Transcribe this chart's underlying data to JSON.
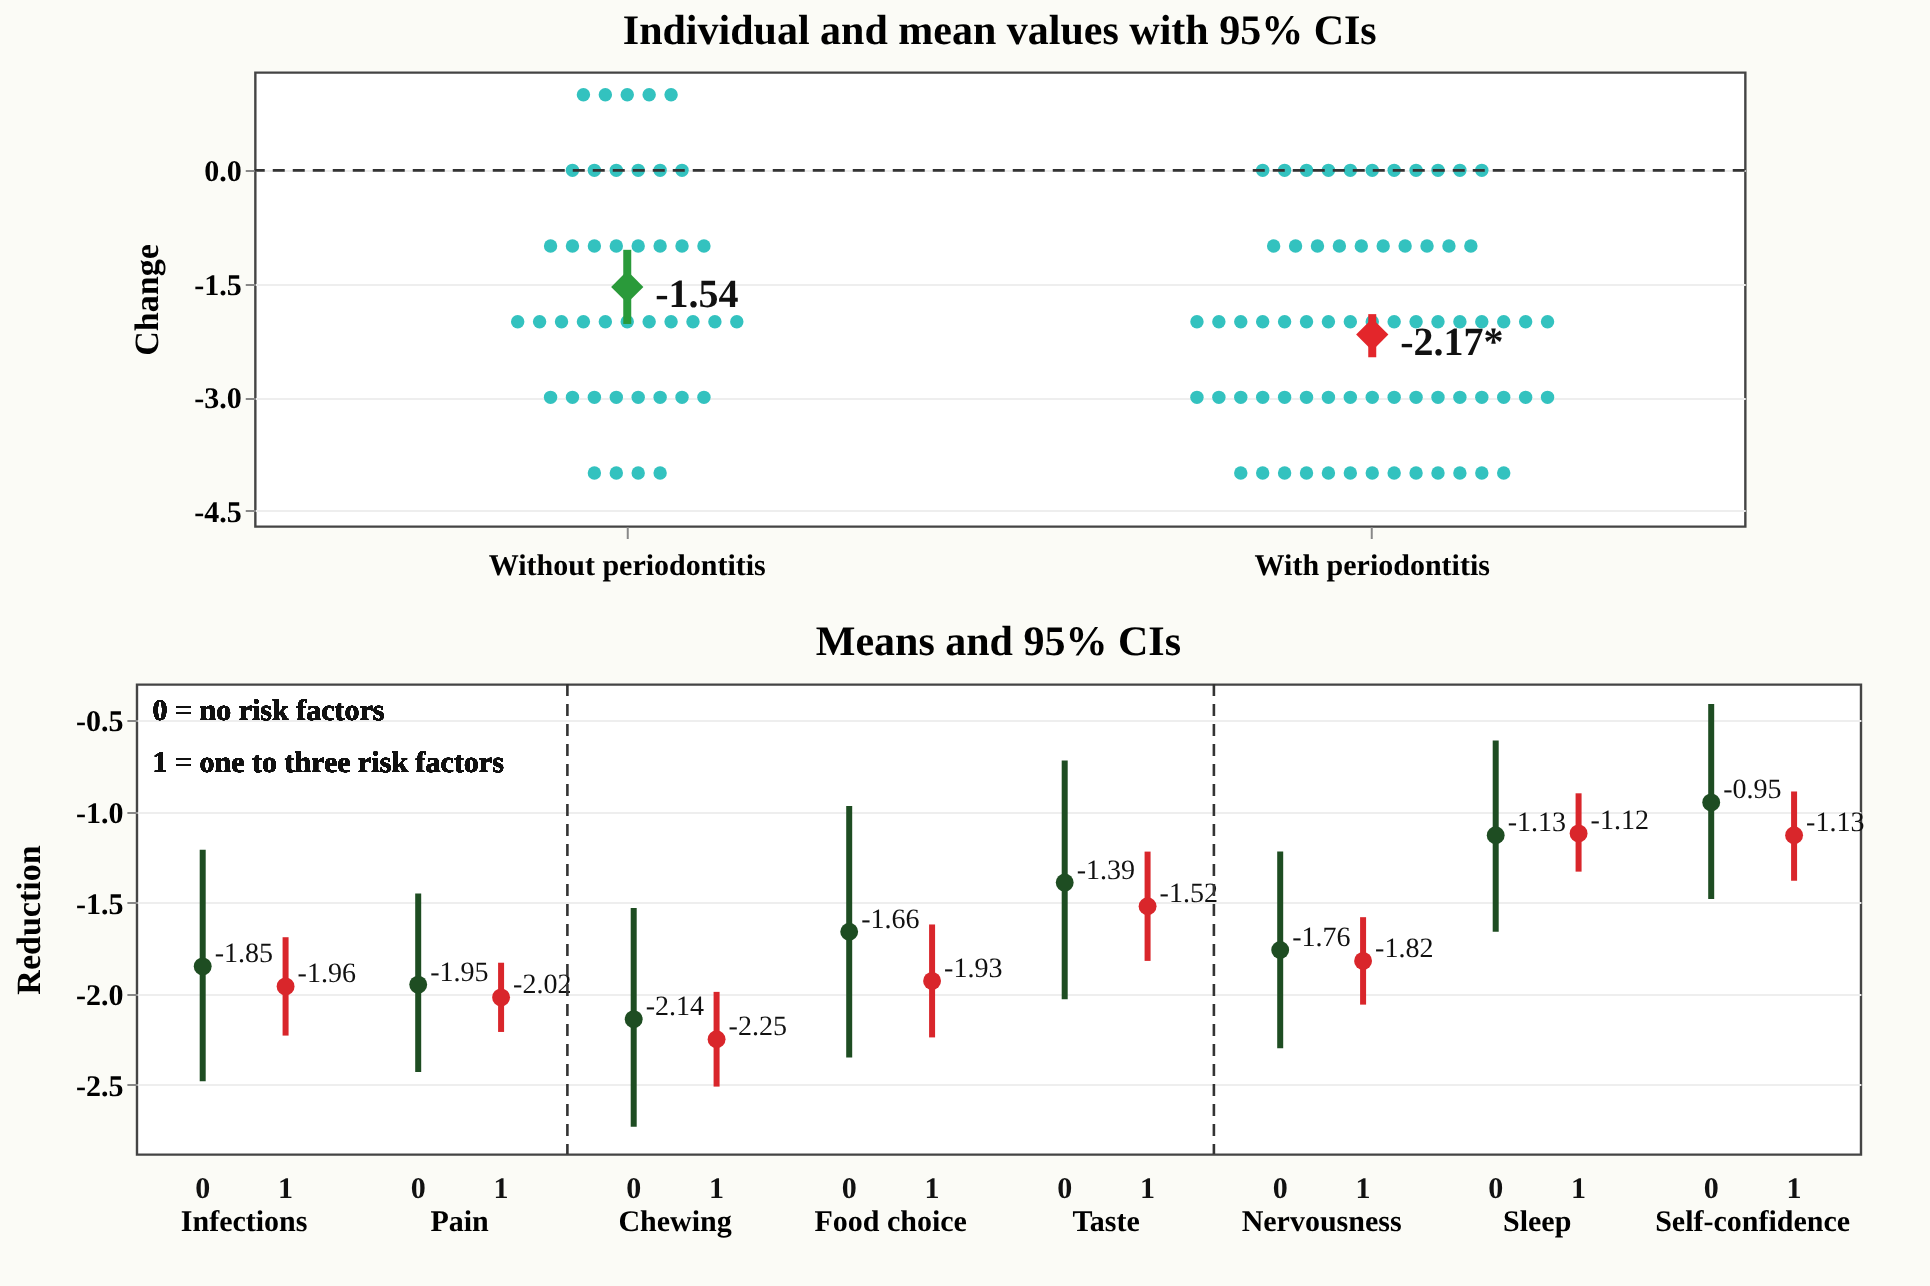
{
  "chart_data": [
    {
      "type": "scatter",
      "title": "Individual and mean values with 95% CIs",
      "ylabel": "Change",
      "categories": [
        "Without periodontitis",
        "With periodontitis"
      ],
      "ylim": [
        -4.7,
        1.3
      ],
      "yticks": [
        {
          "value": 0,
          "label": "0.0"
        },
        {
          "value": -1.5,
          "label": "-1.5"
        },
        {
          "value": -3,
          "label": "-3.0"
        },
        {
          "value": -4.5,
          "label": "-4.5"
        }
      ],
      "grid": "y",
      "ref_lines": [
        {
          "axis": "y",
          "value": 0,
          "line_style": "dashed",
          "color": "#333333"
        }
      ],
      "series": [
        {
          "color": "#33c2bf",
          "marker": "circle",
          "x": [
            "Without periodontitis",
            "Without periodontitis",
            "Without periodontitis",
            "Without periodontitis",
            "Without periodontitis",
            "Without periodontitis",
            "Without periodontitis",
            "Without periodontitis",
            "Without periodontitis",
            "Without periodontitis",
            "Without periodontitis",
            "Without periodontitis",
            "Without periodontitis",
            "Without periodontitis",
            "Without periodontitis",
            "Without periodontitis",
            "Without periodontitis",
            "Without periodontitis",
            "Without periodontitis",
            "Without periodontitis",
            "Without periodontitis",
            "Without periodontitis",
            "Without periodontitis",
            "Without periodontitis",
            "Without periodontitis",
            "Without periodontitis",
            "Without periodontitis",
            "Without periodontitis",
            "Without periodontitis",
            "Without periodontitis",
            "Without periodontitis",
            "Without periodontitis",
            "Without periodontitis",
            "Without periodontitis",
            "Without periodontitis",
            "Without periodontitis",
            "Without periodontitis",
            "Without periodontitis",
            "Without periodontitis",
            "Without periodontitis",
            "Without periodontitis",
            "Without periodontitis",
            "With periodontitis",
            "With periodontitis",
            "With periodontitis",
            "With periodontitis",
            "With periodontitis",
            "With periodontitis",
            "With periodontitis",
            "With periodontitis",
            "With periodontitis",
            "With periodontitis",
            "With periodontitis",
            "With periodontitis",
            "With periodontitis",
            "With periodontitis",
            "With periodontitis",
            "With periodontitis",
            "With periodontitis",
            "With periodontitis",
            "With periodontitis",
            "With periodontitis",
            "With periodontitis",
            "With periodontitis",
            "With periodontitis",
            "With periodontitis",
            "With periodontitis",
            "With periodontitis",
            "With periodontitis",
            "With periodontitis",
            "With periodontitis",
            "With periodontitis",
            "With periodontitis",
            "With periodontitis",
            "With periodontitis",
            "With periodontitis",
            "With periodontitis",
            "With periodontitis",
            "With periodontitis",
            "With periodontitis",
            "With periodontitis",
            "With periodontitis",
            "With periodontitis",
            "With periodontitis",
            "With periodontitis",
            "With periodontitis",
            "With periodontitis",
            "With periodontitis",
            "With periodontitis",
            "With periodontitis",
            "With periodontitis",
            "With periodontitis",
            "With periodontitis",
            "With periodontitis",
            "With periodontitis",
            "With periodontitis",
            "With periodontitis",
            "With periodontitis",
            "With periodontitis",
            "With periodontitis",
            "With periodontitis",
            "With periodontitis",
            "With periodontitis",
            "With periodontitis",
            "With periodontitis",
            "With periodontitis",
            "With periodontitis",
            "With periodontitis",
            "With periodontitis",
            "With periodontitis"
          ],
          "values": [
            1,
            1,
            1,
            1,
            1,
            0,
            0,
            0,
            0,
            0,
            0,
            -1,
            -1,
            -1,
            -1,
            -1,
            -1,
            -1,
            -1,
            -2,
            -2,
            -2,
            -2,
            -2,
            -2,
            -2,
            -2,
            -2,
            -2,
            -2,
            -3,
            -3,
            -3,
            -3,
            -3,
            -3,
            -3,
            -3,
            -4,
            -4,
            -4,
            -4,
            0,
            0,
            0,
            0,
            0,
            0,
            0,
            0,
            0,
            0,
            0,
            -1,
            -1,
            -1,
            -1,
            -1,
            -1,
            -1,
            -1,
            -1,
            -1,
            -2,
            -2,
            -2,
            -2,
            -2,
            -2,
            -2,
            -2,
            -2,
            -2,
            -2,
            -2,
            -2,
            -2,
            -2,
            -2,
            -2,
            -3,
            -3,
            -3,
            -3,
            -3,
            -3,
            -3,
            -3,
            -3,
            -3,
            -3,
            -3,
            -3,
            -3,
            -3,
            -3,
            -3,
            -4,
            -4,
            -4,
            -4,
            -4,
            -4,
            -4,
            -4,
            -4,
            -4,
            -4,
            -4,
            -4
          ]
        },
        {
          "marker": "diamond",
          "colors": [
            "#2a9a3a",
            "#e3262b"
          ],
          "values": [
            -1.54,
            -2.17
          ],
          "errors": [
            [
              -2.03,
              -1.05
            ],
            [
              -2.47,
              -1.9
            ]
          ],
          "value_labels": [
            "-1.54",
            "-2.17*"
          ]
        }
      ]
    },
    {
      "type": "scatter",
      "title": "Means and 95% CIs",
      "ylabel": "Reduction",
      "categories": [
        "Infections",
        "Pain",
        "Chewing",
        "Food choice",
        "Taste",
        "Nervousness",
        "Sleep",
        "Self-confidence"
      ],
      "ylim": [
        -2.88,
        -0.3
      ],
      "yticks": [
        {
          "value": -0.5,
          "label": "-0.5"
        },
        {
          "value": -1,
          "label": "-1.0"
        },
        {
          "value": -1.5,
          "label": "-1.5"
        },
        {
          "value": -2,
          "label": "-2.0"
        },
        {
          "value": -2.5,
          "label": "-2.5"
        }
      ],
      "grid": "y",
      "marker": "circle",
      "data_labels": true,
      "annotations": [
        "0 =  no risk factors",
        "1 = one to three risk factors"
      ],
      "series": [
        {
          "name": "0",
          "color": "#1e4d22",
          "values": [
            -1.85,
            -1.95,
            -2.14,
            -1.66,
            -1.39,
            -1.76,
            -1.13,
            -0.95
          ],
          "errors": [
            [
              -2.48,
              -1.21
            ],
            [
              -2.43,
              -1.45
            ],
            [
              -2.73,
              -1.53
            ],
            [
              -2.35,
              -0.97
            ],
            [
              -2.03,
              -0.72
            ],
            [
              -2.3,
              -1.22
            ],
            [
              -1.66,
              -0.61
            ],
            [
              -1.48,
              -0.41
            ]
          ]
        },
        {
          "name": "1",
          "color": "#d9262b",
          "values": [
            -1.96,
            -2.02,
            -2.25,
            -1.93,
            -1.52,
            -1.82,
            -1.12,
            -1.13
          ],
          "errors": [
            [
              -2.23,
              -1.69
            ],
            [
              -2.21,
              -1.83
            ],
            [
              -2.51,
              -1.99
            ],
            [
              -2.24,
              -1.62
            ],
            [
              -1.82,
              -1.22
            ],
            [
              -2.06,
              -1.58
            ],
            [
              -1.33,
              -0.9
            ],
            [
              -1.38,
              -0.89
            ]
          ]
        }
      ]
    }
  ]
}
